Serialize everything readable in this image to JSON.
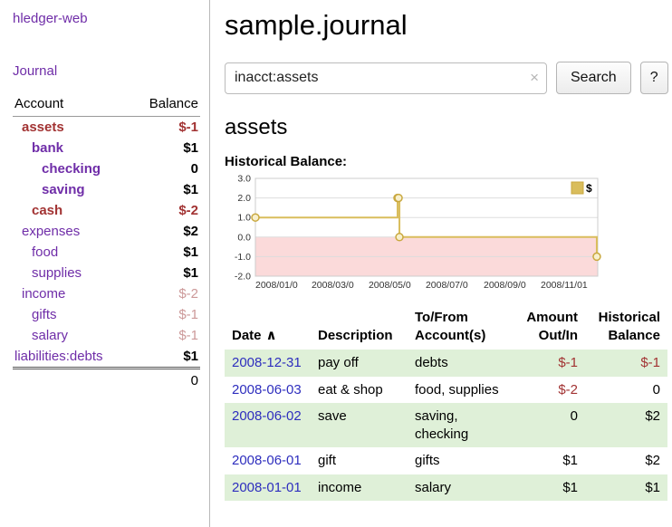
{
  "app": {
    "title": "hledger-web",
    "nav_journal": "Journal"
  },
  "colors": {
    "purple": "#6f2da8",
    "negative": "#a23333",
    "rose": "#cc9999",
    "link_blue": "#2e2ebe",
    "row_green": "#dff0d8"
  },
  "sidebar": {
    "headers": {
      "account": "Account",
      "balance": "Balance"
    },
    "rows": [
      {
        "name": "assets",
        "indent": 1,
        "name_class": "maroon bold",
        "balance": "$-1",
        "balance_class": "maroon bold"
      },
      {
        "name": "bank",
        "indent": 2,
        "name_class": "purple bold",
        "balance": "$1",
        "balance_class": "bold"
      },
      {
        "name": "checking",
        "indent": 3,
        "name_class": "purple bold",
        "balance": "0",
        "balance_class": "bold"
      },
      {
        "name": "saving",
        "indent": 3,
        "name_class": "purple bold",
        "balance": "$1",
        "balance_class": "bold"
      },
      {
        "name": "cash",
        "indent": 2,
        "name_class": "maroon bold",
        "balance": "$-2",
        "balance_class": "maroon bold"
      },
      {
        "name": "expenses",
        "indent": 1,
        "name_class": "purple",
        "balance": "$2",
        "balance_class": "bold"
      },
      {
        "name": "food",
        "indent": 2,
        "name_class": "purple",
        "balance": "$1",
        "balance_class": "bold"
      },
      {
        "name": "supplies",
        "indent": 2,
        "name_class": "purple",
        "balance": "$1",
        "balance_class": "bold"
      },
      {
        "name": "income",
        "indent": 1,
        "name_class": "purple",
        "balance": "$-2",
        "balance_class": "rose"
      },
      {
        "name": "gifts",
        "indent": 2,
        "name_class": "purple",
        "balance": "$-1",
        "balance_class": "rose"
      },
      {
        "name": "salary",
        "indent": 2,
        "name_class": "purple",
        "balance": "$-1",
        "balance_class": "rose"
      },
      {
        "name": "liabilities:debts",
        "indent": 0,
        "name_class": "purple",
        "balance": "$1",
        "balance_class": "bold"
      }
    ],
    "total": "0"
  },
  "main": {
    "title": "sample.journal",
    "search": {
      "value": "inacct:assets",
      "clear": "×",
      "button": "Search",
      "help": "?"
    },
    "account_heading": "assets",
    "chart_title": "Historical Balance:"
  },
  "chart_data": {
    "type": "line",
    "step": true,
    "title": "Historical Balance:",
    "series": [
      {
        "name": "$",
        "points": [
          [
            "2008-01-01",
            1
          ],
          [
            "2008-06-01",
            2
          ],
          [
            "2008-06-02",
            2
          ],
          [
            "2008-06-03",
            0
          ],
          [
            "2008-12-31",
            -1
          ]
        ]
      }
    ],
    "x_domain": [
      "2008-01-01",
      "2009-01-01"
    ],
    "x_ticks": [
      "2008/01/0",
      "2008/03/0",
      "2008/05/0",
      "2008/07/0",
      "2008/09/0",
      "2008/11/01"
    ],
    "x_tick_dates": [
      "2008-01-01",
      "2008-03-01",
      "2008-05-01",
      "2008-07-01",
      "2008-09-01",
      "2008-11-01"
    ],
    "y_ticks": [
      3,
      2,
      1,
      0,
      -1,
      -2
    ],
    "ylim": [
      -2,
      3
    ],
    "grid": true,
    "legend_position": "top-right",
    "line_color": "#d9bd5c",
    "marker_fill": "#f8f0cd",
    "marker_stroke": "#c9a83f",
    "negative_fill": "#fbdada"
  },
  "register": {
    "headers": {
      "date": "Date",
      "sort_icon": "∧",
      "description": "Description",
      "accounts": "To/From Account(s)",
      "amount": "Amount Out/In",
      "balance": "Historical Balance"
    },
    "rows": [
      {
        "date": "2008-12-31",
        "description": "pay off",
        "accounts": "debts",
        "amount": "$-1",
        "amount_negative": true,
        "balance": "$-1",
        "balance_negative": true
      },
      {
        "date": "2008-06-03",
        "description": "eat & shop",
        "accounts": "food, supplies",
        "amount": "$-2",
        "amount_negative": true,
        "balance": "0",
        "balance_negative": false
      },
      {
        "date": "2008-06-02",
        "description": "save",
        "accounts": "saving, checking",
        "amount": "0",
        "amount_negative": false,
        "balance": "$2",
        "balance_negative": false
      },
      {
        "date": "2008-06-01",
        "description": "gift",
        "accounts": "gifts",
        "amount": "$1",
        "amount_negative": false,
        "balance": "$2",
        "balance_negative": false
      },
      {
        "date": "2008-01-01",
        "description": "income",
        "accounts": "salary",
        "amount": "$1",
        "amount_negative": false,
        "balance": "$1",
        "balance_negative": false
      }
    ]
  }
}
